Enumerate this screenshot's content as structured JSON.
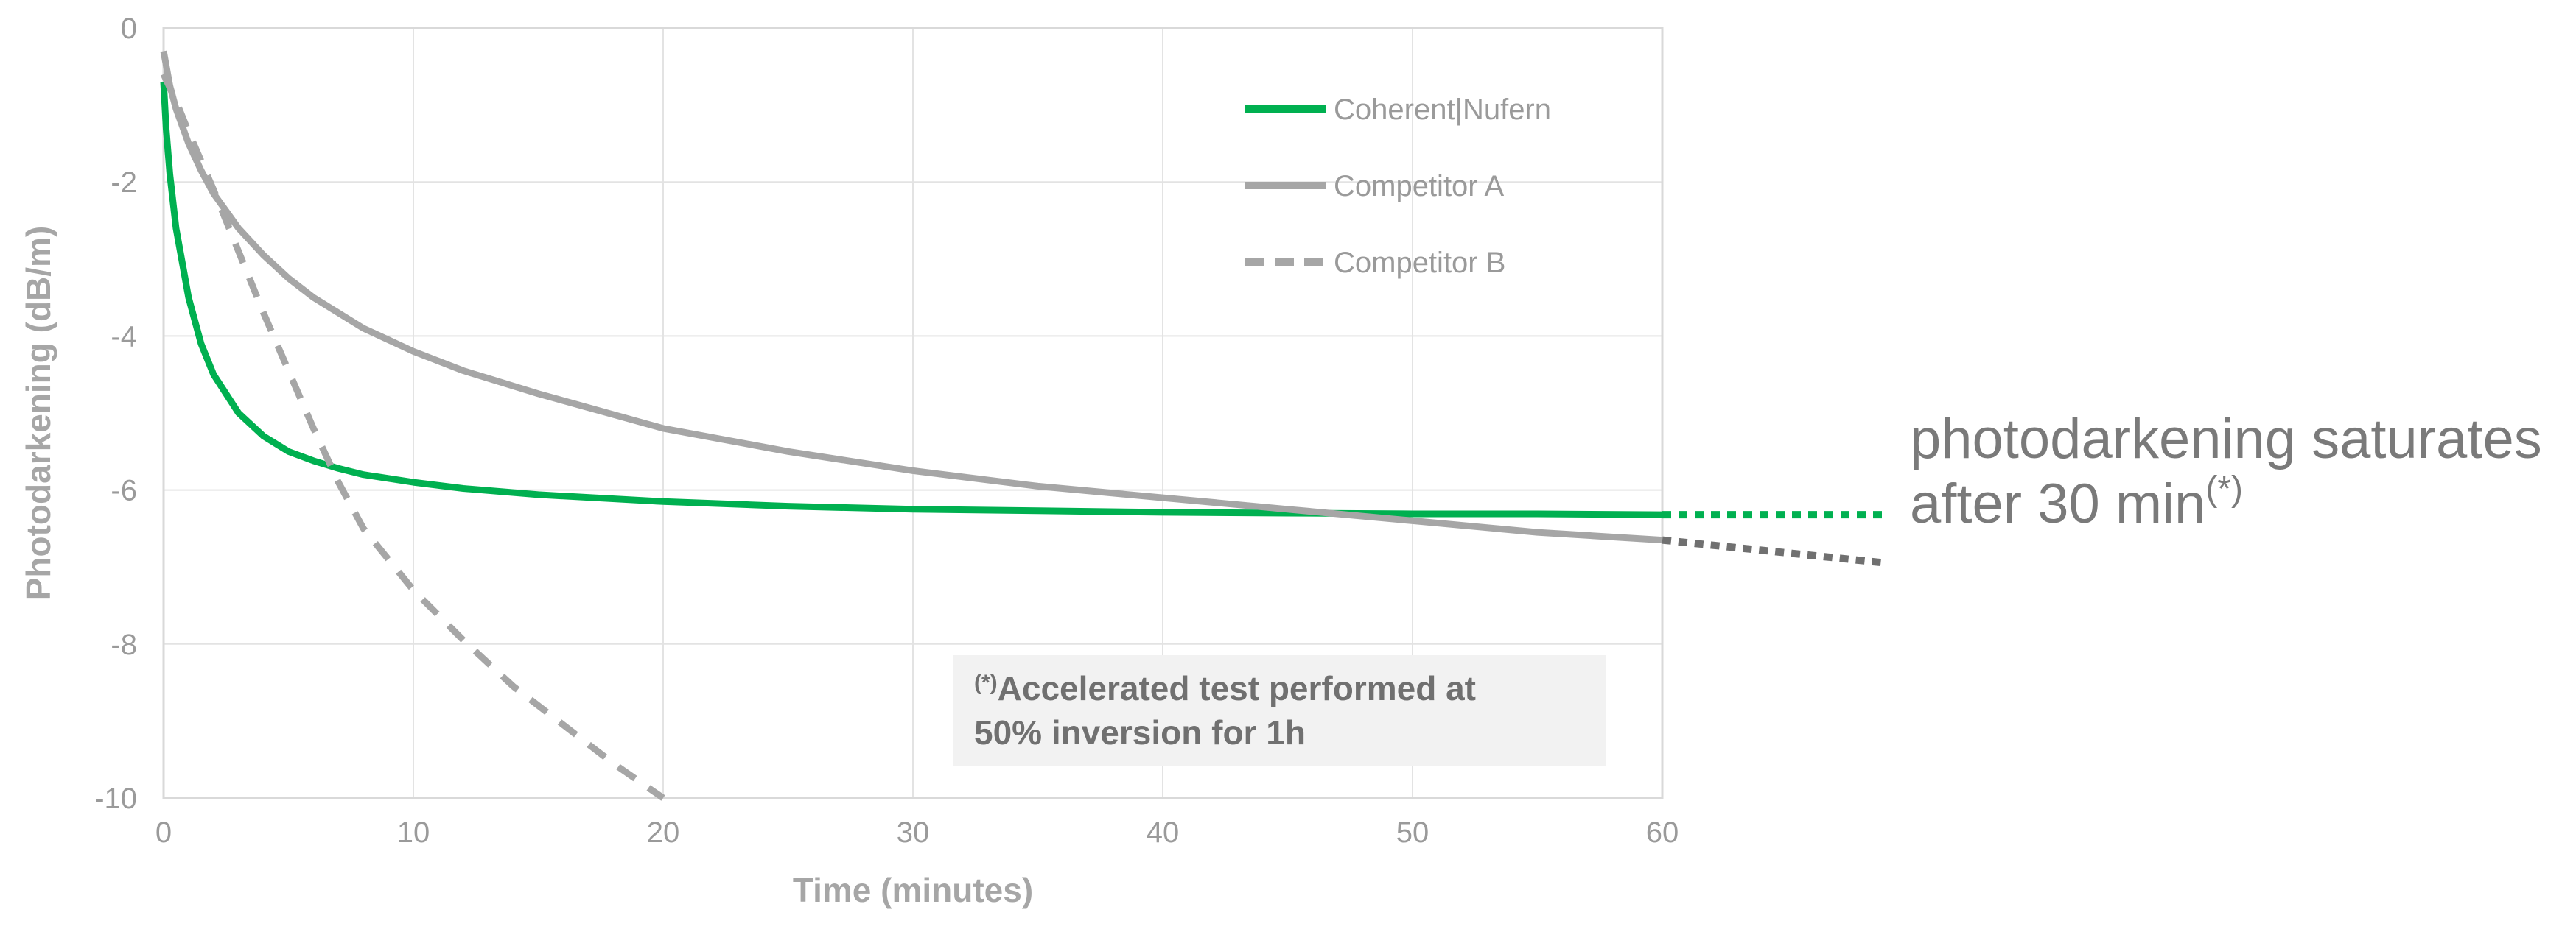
{
  "chart_data": {
    "type": "line",
    "xlabel": "Time (minutes)",
    "ylabel": "Photodarkening (dB/m)",
    "xlim": [
      0,
      60
    ],
    "ylim": [
      -10,
      0
    ],
    "x_ticks": [
      0,
      10,
      20,
      30,
      40,
      50,
      60
    ],
    "y_ticks": [
      0,
      -2,
      -4,
      -6,
      -8,
      -10
    ],
    "grid": true,
    "legend_position": "top-right",
    "series": [
      {
        "name": "Coherent|Nufern",
        "color": "#00b050",
        "style": "solid",
        "x": [
          0,
          0.1,
          0.25,
          0.5,
          1,
          1.5,
          2,
          3,
          4,
          5,
          6,
          7,
          8,
          10,
          12,
          15,
          20,
          25,
          30,
          35,
          40,
          45,
          50,
          55,
          60
        ],
        "y": [
          -0.7,
          -1.3,
          -1.9,
          -2.6,
          -3.5,
          -4.1,
          -4.5,
          -5.0,
          -5.3,
          -5.5,
          -5.62,
          -5.72,
          -5.8,
          -5.9,
          -5.98,
          -6.06,
          -6.15,
          -6.21,
          -6.25,
          -6.27,
          -6.29,
          -6.3,
          -6.31,
          -6.31,
          -6.32
        ]
      },
      {
        "name": "Competitor A",
        "color": "#a6a6a6",
        "style": "solid",
        "x": [
          0,
          0.25,
          0.5,
          1,
          1.5,
          2,
          3,
          4,
          5,
          6,
          8,
          10,
          12,
          15,
          20,
          25,
          30,
          35,
          40,
          45,
          50,
          55,
          60
        ],
        "y": [
          -0.3,
          -0.75,
          -1.05,
          -1.5,
          -1.85,
          -2.15,
          -2.6,
          -2.95,
          -3.25,
          -3.5,
          -3.9,
          -4.2,
          -4.45,
          -4.75,
          -5.2,
          -5.5,
          -5.75,
          -5.95,
          -6.1,
          -6.25,
          -6.4,
          -6.55,
          -6.65
        ]
      },
      {
        "name": "Competitor B",
        "color": "#a6a6a6",
        "style": "dashed",
        "x": [
          0,
          0.5,
          1,
          2,
          3,
          4,
          5,
          6,
          7,
          8,
          10,
          12,
          14,
          16,
          18,
          20
        ],
        "y": [
          -0.6,
          -0.95,
          -1.35,
          -2.1,
          -2.9,
          -3.7,
          -4.45,
          -5.2,
          -5.9,
          -6.5,
          -7.3,
          -7.95,
          -8.55,
          -9.05,
          -9.55,
          -10.0
        ]
      }
    ],
    "extensions": [
      {
        "series": "Coherent|Nufern",
        "color": "#00b050",
        "style": "dotted",
        "x": [
          60,
          69
        ],
        "y": [
          -6.32,
          -6.32
        ]
      },
      {
        "series": "Competitor A",
        "color": "#707070",
        "style": "dotted",
        "x": [
          60,
          69
        ],
        "y": [
          -6.65,
          -6.95
        ]
      }
    ],
    "annotations": {
      "note_marker": "(*)",
      "note_line1": "Accelerated test performed at",
      "note_line2": "50% inversion for 1h",
      "callout_line1": "photodarkening saturates",
      "callout_line2": "after 30 min",
      "callout_marker": "(*)"
    }
  }
}
